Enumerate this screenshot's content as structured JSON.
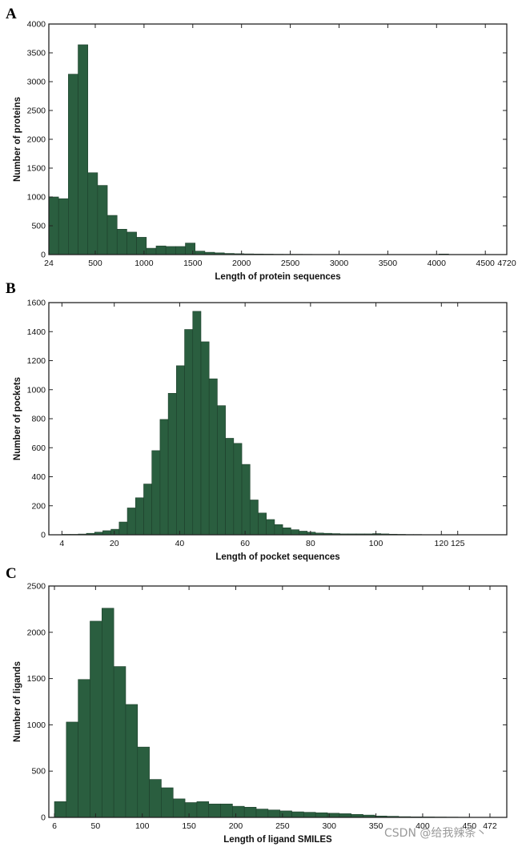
{
  "colors": {
    "bar": "#2a5e3f",
    "bar_edge": "#1d3f2b",
    "axis": "#222222"
  },
  "watermark": "CSDN @给我辣条丶",
  "chart_data": [
    {
      "panel": "A",
      "type": "bar",
      "title": "",
      "xlabel": "Length of protein sequences",
      "ylabel": "Number of proteins",
      "xlim": [
        24,
        4720
      ],
      "ylim": [
        0,
        4000
      ],
      "bin_start": 24,
      "bin_width": 100,
      "values": [
        1000,
        970,
        3130,
        3640,
        1420,
        1200,
        680,
        440,
        390,
        300,
        110,
        150,
        140,
        140,
        200,
        60,
        40,
        30,
        20,
        15,
        12,
        10,
        8,
        6,
        5,
        5,
        4,
        3,
        3,
        3,
        2,
        2,
        2,
        2,
        1,
        1,
        1,
        1,
        1,
        1,
        10,
        0,
        0,
        0,
        0,
        0,
        0
      ],
      "xticks": [
        24,
        500,
        1000,
        1500,
        2000,
        2500,
        3000,
        3500,
        4000,
        4500,
        4720
      ],
      "xtick_labels": [
        "24",
        "500",
        "1000",
        "1500",
        "2000",
        "2500",
        "3000",
        "3500",
        "4000",
        "4500",
        "4720"
      ],
      "yticks": [
        0,
        500,
        1000,
        1500,
        2000,
        2500,
        3000,
        3500,
        4000
      ],
      "ytick_labels": [
        "0",
        "500",
        "1000",
        "1500",
        "2000",
        "2500",
        "3000",
        "3500",
        "4000"
      ]
    },
    {
      "panel": "B",
      "type": "bar",
      "title": "",
      "xlabel": "Length of pocket sequences",
      "ylabel": "Number of pockets",
      "xlim": [
        0,
        140
      ],
      "ylim": [
        0,
        1600
      ],
      "bin_start": 4,
      "bin_width": 2.5,
      "values": [
        3,
        3,
        5,
        10,
        18,
        28,
        38,
        88,
        185,
        255,
        350,
        580,
        795,
        975,
        1165,
        1415,
        1540,
        1330,
        1075,
        890,
        665,
        630,
        485,
        240,
        150,
        105,
        70,
        48,
        35,
        25,
        18,
        12,
        10,
        8,
        6,
        6,
        6,
        6,
        8,
        6,
        4,
        3,
        2,
        2,
        1,
        1,
        1,
        1,
        0,
        0,
        0,
        0,
        0,
        0
      ],
      "xticks": [
        4,
        20,
        40,
        60,
        80,
        100,
        120,
        125
      ],
      "xtick_labels": [
        "4",
        "20",
        "40",
        "60",
        "80",
        "100",
        "120",
        "125"
      ],
      "yticks": [
        0,
        200,
        400,
        600,
        800,
        1000,
        1200,
        1400,
        1600
      ],
      "ytick_labels": [
        "0",
        "200",
        "400",
        "600",
        "800",
        "1000",
        "1200",
        "1400",
        "1600"
      ]
    },
    {
      "panel": "C",
      "type": "bar",
      "title": "",
      "xlabel": "Length of ligand SMILES",
      "ylabel": "Number of ligands",
      "xlim": [
        0,
        490
      ],
      "ylim": [
        0,
        2500
      ],
      "bin_start": 6,
      "bin_width": 12.7,
      "values": [
        170,
        1030,
        1490,
        2120,
        2260,
        1630,
        1220,
        760,
        410,
        320,
        200,
        160,
        170,
        145,
        145,
        120,
        110,
        90,
        80,
        70,
        60,
        55,
        50,
        45,
        40,
        32,
        25,
        15,
        12,
        8,
        6,
        5,
        4,
        3,
        2,
        1,
        1,
        1,
        1
      ],
      "xticks": [
        6,
        50,
        100,
        150,
        200,
        250,
        300,
        350,
        400,
        450,
        472
      ],
      "xtick_labels": [
        "6",
        "50",
        "100",
        "150",
        "200",
        "250",
        "300",
        "350",
        "400",
        "450",
        "472"
      ],
      "yticks": [
        0,
        500,
        1000,
        1500,
        2000,
        2500
      ],
      "ytick_labels": [
        "0",
        "500",
        "1000",
        "1500",
        "2000",
        "2500"
      ]
    }
  ]
}
